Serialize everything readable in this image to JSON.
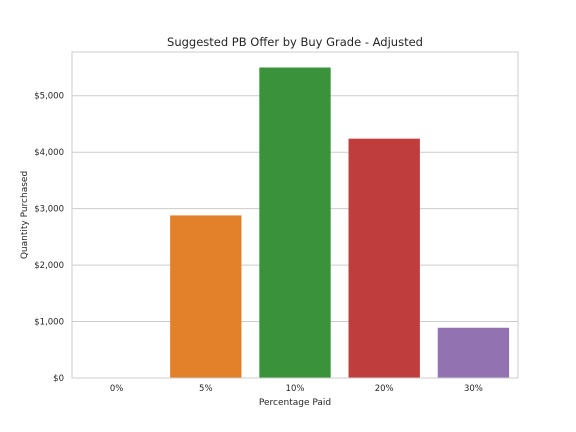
{
  "chart_data": {
    "type": "bar",
    "title": "Suggested PB Offer by Buy Grade - Adjusted",
    "xlabel": "Percentage Paid",
    "ylabel": "Quantity Purchased",
    "categories": [
      "0%",
      "5%",
      "10%",
      "20%",
      "30%"
    ],
    "values": [
      0,
      2880,
      5500,
      4240,
      890
    ],
    "colors": [
      "#1f77b4",
      "#e3812b",
      "#3a923a",
      "#c03d3e",
      "#9372b2"
    ],
    "ylim": [
      0,
      5775
    ],
    "yticks": [
      0,
      1000,
      2000,
      3000,
      4000,
      5000
    ],
    "ytick_labels": [
      "$0",
      "$1,000",
      "$2,000",
      "$3,000",
      "$4,000",
      "$5,000"
    ],
    "grid": true,
    "gridColor": "#cccccc",
    "spineColor": "#cccccc"
  }
}
